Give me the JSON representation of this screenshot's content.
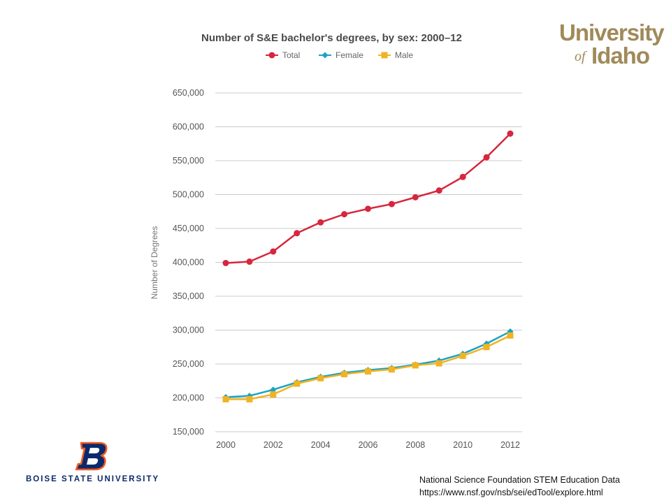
{
  "chart_data": {
    "type": "line",
    "title": "Number of S&E bachelor's degrees, by sex: 2000–12",
    "xlabel": "",
    "ylabel": "Number of Degrees",
    "x": [
      2000,
      2001,
      2002,
      2003,
      2004,
      2005,
      2006,
      2007,
      2008,
      2009,
      2010,
      2011,
      2012
    ],
    "x_ticks": [
      "2000",
      "2002",
      "2004",
      "2006",
      "2008",
      "2010",
      "2012"
    ],
    "y_ticks": [
      "650,000",
      "600,000",
      "550,000",
      "500,000",
      "450,000",
      "400,000",
      "350,000",
      "300,000",
      "250,000",
      "200,000",
      "150,000"
    ],
    "ylim": [
      150000,
      650000
    ],
    "grid": "horizontal",
    "legend_position": "top",
    "series": [
      {
        "name": "Total",
        "color": "#d7263d",
        "marker": "circle",
        "values": [
          399000,
          401000,
          416000,
          443000,
          459000,
          471000,
          479000,
          486000,
          496000,
          506000,
          526000,
          555000,
          590000
        ]
      },
      {
        "name": "Female",
        "color": "#1aa3c4",
        "marker": "diamond",
        "values": [
          201000,
          203000,
          212000,
          223000,
          231000,
          237000,
          241000,
          244000,
          249000,
          255000,
          265000,
          280000,
          298000
        ]
      },
      {
        "name": "Male",
        "color": "#f0b323",
        "marker": "square",
        "values": [
          198000,
          198000,
          205000,
          221000,
          229000,
          235000,
          239000,
          242000,
          248000,
          251000,
          262000,
          275000,
          292000
        ]
      }
    ]
  },
  "logos": {
    "uidaho_line1": "University",
    "uidaho_of": "of",
    "uidaho_idaho": "Idaho",
    "bsu_name": "BOISE STATE UNIVERSITY",
    "colors": {
      "uidaho_gold": "#a08a59",
      "bsu_blue": "#0b2a6b",
      "bsu_orange": "#f15a22"
    }
  },
  "source": {
    "line1": "National Science Foundation STEM Education Data",
    "line2": "https://www.nsf.gov/nsb/sei/edTool/explore.html"
  }
}
